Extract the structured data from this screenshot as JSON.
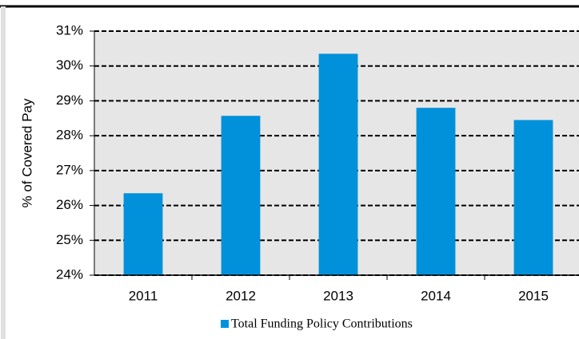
{
  "chart_data": {
    "type": "bar",
    "y_label": "% of Covered Pay",
    "categories": [
      "2011",
      "2012",
      "2013",
      "2014",
      "2015"
    ],
    "series": [
      {
        "name": "Total Funding Policy Contributions",
        "color": "#0091da",
        "values": [
          26.35,
          28.57,
          30.35,
          28.8,
          28.45
        ]
      }
    ],
    "ylim": [
      24,
      31
    ],
    "yticks": [
      {
        "value": 24,
        "label": "24%"
      },
      {
        "value": 25,
        "label": "25%"
      },
      {
        "value": 26,
        "label": "26%"
      },
      {
        "value": 27,
        "label": "27%"
      },
      {
        "value": 28,
        "label": "28%"
      },
      {
        "value": 29,
        "label": "29%"
      },
      {
        "value": 30,
        "label": "30%"
      },
      {
        "value": 31,
        "label": "31%"
      }
    ],
    "grid": true,
    "legend": "bottom"
  }
}
